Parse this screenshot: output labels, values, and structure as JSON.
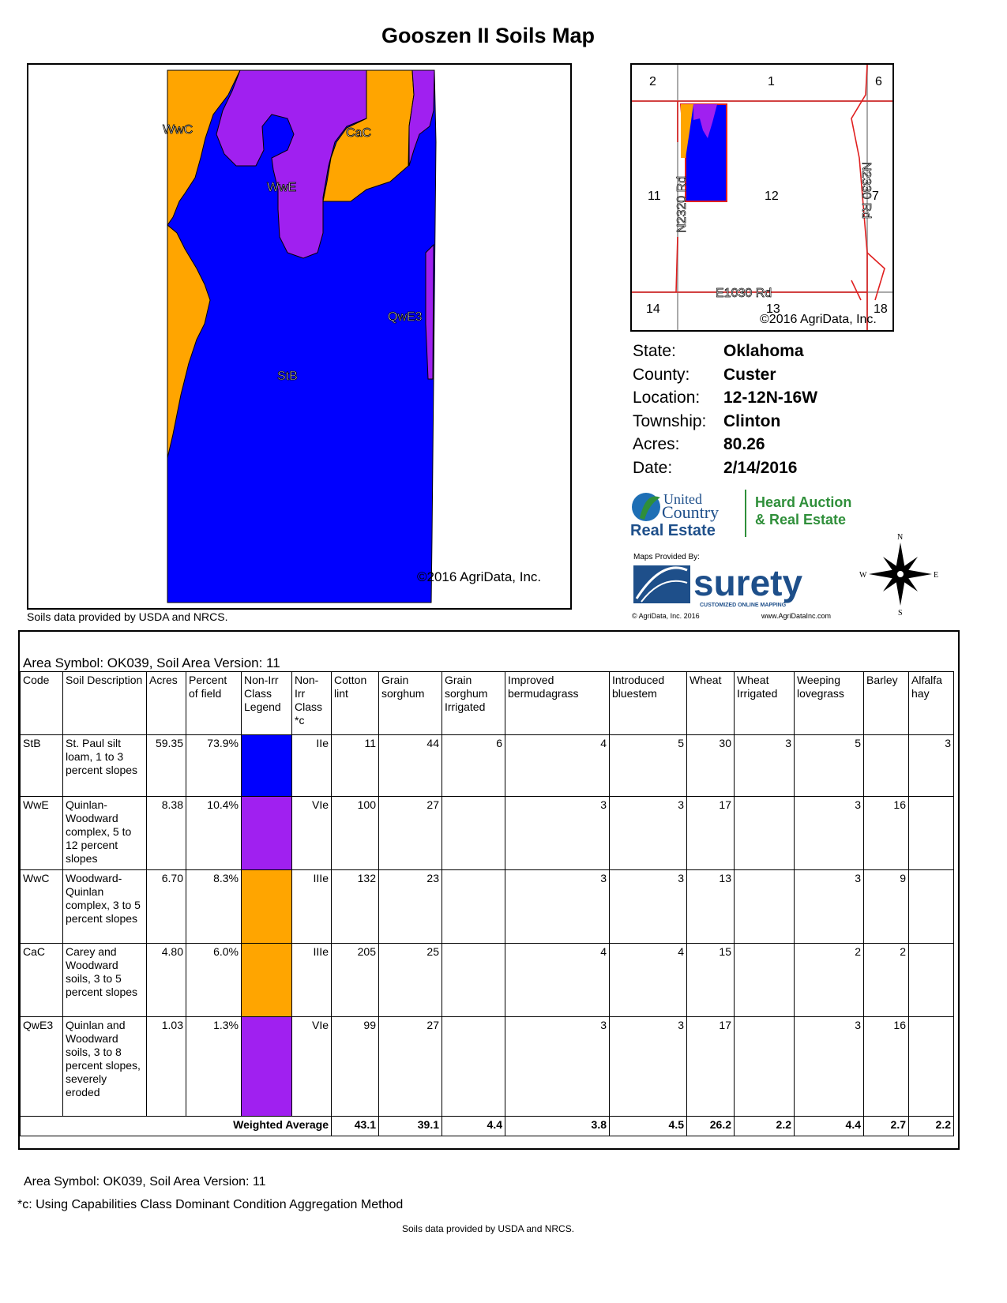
{
  "title": "Gooszen II Soils Map",
  "soil_map": {
    "labels": [
      "WwC",
      "CaC",
      "WwE",
      "QwE3",
      "StB"
    ],
    "copyright": "©2016 AgriData, Inc.",
    "colors": {
      "StB": "#0000ff",
      "WwE": "#a020f0",
      "WwC": "#ffa500",
      "CaC": "#ffa500",
      "QwE3": "#a020f0"
    }
  },
  "map_source_note": "Soils data provided by USDA and NRCS.",
  "location_map": {
    "sections": [
      "2",
      "1",
      "6",
      "11",
      "12",
      "7",
      "14",
      "13",
      "18"
    ],
    "roads": [
      "N2320 Rd",
      "N2330 Rd",
      "E1030 Rd"
    ],
    "copyright": "©2016 AgriData, Inc."
  },
  "info": [
    {
      "label": "State:",
      "value": "Oklahoma"
    },
    {
      "label": "County:",
      "value": "Custer"
    },
    {
      "label": "Location:",
      "value": "12-12N-16W"
    },
    {
      "label": "Township:",
      "value": "Clinton"
    },
    {
      "label": "Acres:",
      "value": "80.26"
    },
    {
      "label": "Date:",
      "value": "2/14/2016"
    }
  ],
  "logos": {
    "uc_line1": "United",
    "uc_line2": "Country",
    "uc_line3": "Real Estate",
    "heard_line1": "Heard Auction",
    "heard_line2": "& Real Estate",
    "maps_by": "Maps Provided By:",
    "surety": "surety",
    "surety_tag": "CUSTOMIZED ONLINE MAPPING",
    "agridata": "© AgriData, Inc. 2016",
    "url": "www.AgriDataInc.com",
    "compass": [
      "N",
      "W",
      "E",
      "S"
    ]
  },
  "table": {
    "caption": "Area Symbol: OK039, Soil Area Version: 11",
    "headers": [
      "Code",
      "Soil Description",
      "Acres",
      "Percent of field",
      "Non-Irr Class Legend",
      "Non-Irr Class *c",
      "Cotton lint",
      "Grain sorghum",
      "Grain sorghum Irrigated",
      "Improved bermudagrass",
      "Introduced bluestem",
      "Wheat",
      "Wheat Irrigated",
      "Weeping lovegrass",
      "Barley",
      "Alfalfa hay"
    ],
    "rows": [
      {
        "code": "StB",
        "desc": "St. Paul silt loam, 1 to 3 percent slopes",
        "acres": "59.35",
        "pct": "73.9%",
        "color": "#0000ff",
        "cls": "IIe",
        "cotton": "11",
        "gs": "44",
        "gsi": "6",
        "ib": "4",
        "ibl": "5",
        "wheat": "30",
        "wi": "3",
        "wl": "5",
        "barley": "",
        "alfalfa": "3"
      },
      {
        "code": "WwE",
        "desc": "Quinlan-Woodward complex, 5 to 12 percent slopes",
        "acres": "8.38",
        "pct": "10.4%",
        "color": "#a020f0",
        "cls": "VIe",
        "cotton": "100",
        "gs": "27",
        "gsi": "",
        "ib": "3",
        "ibl": "3",
        "wheat": "17",
        "wi": "",
        "wl": "3",
        "barley": "16",
        "alfalfa": ""
      },
      {
        "code": "WwC",
        "desc": "Woodward-Quinlan complex, 3 to 5 percent slopes",
        "acres": "6.70",
        "pct": "8.3%",
        "color": "#ffa500",
        "cls": "IIIe",
        "cotton": "132",
        "gs": "23",
        "gsi": "",
        "ib": "3",
        "ibl": "3",
        "wheat": "13",
        "wi": "",
        "wl": "3",
        "barley": "9",
        "alfalfa": ""
      },
      {
        "code": "CaC",
        "desc": "Carey and Woodward soils, 3 to 5 percent slopes",
        "acres": "4.80",
        "pct": "6.0%",
        "color": "#ffa500",
        "cls": "IIIe",
        "cotton": "205",
        "gs": "25",
        "gsi": "",
        "ib": "4",
        "ibl": "4",
        "wheat": "15",
        "wi": "",
        "wl": "2",
        "barley": "2",
        "alfalfa": ""
      },
      {
        "code": "QwE3",
        "desc": "Quinlan and Woodward soils, 3 to 8 percent slopes, severely eroded",
        "acres": "1.03",
        "pct": "1.3%",
        "color": "#a020f0",
        "cls": "VIe",
        "cotton": "99",
        "gs": "27",
        "gsi": "",
        "ib": "3",
        "ibl": "3",
        "wheat": "17",
        "wi": "",
        "wl": "3",
        "barley": "16",
        "alfalfa": ""
      }
    ],
    "avg_label": "Weighted Average",
    "avg": [
      "43.1",
      "39.1",
      "4.4",
      "3.8",
      "4.5",
      "26.2",
      "2.2",
      "4.4",
      "2.7",
      "2.2"
    ]
  },
  "footer": {
    "area": "Area Symbol: OK039, Soil Area Version: 11",
    "note": "*c:  Using Capabilities Class Dominant Condition Aggregation Method",
    "source": "Soils data provided by USDA and NRCS."
  }
}
